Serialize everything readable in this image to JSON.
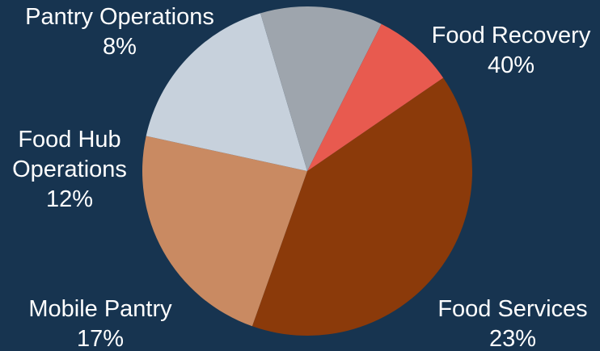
{
  "chart_data": {
    "type": "pie",
    "title": "",
    "slices": [
      {
        "label": "Food Recovery",
        "value": 40,
        "value_label": "40%",
        "color": "#8B3A0A"
      },
      {
        "label": "Food Services",
        "value": 23,
        "value_label": "23%",
        "color": "#C98A62"
      },
      {
        "label": "Mobile Pantry",
        "value": 17,
        "value_label": "17%",
        "color": "#C7D1DC"
      },
      {
        "label": "Food Hub Operations",
        "value": 12,
        "value_label": "12%",
        "color": "#9EA5AD"
      },
      {
        "label": "Pantry Operations",
        "value": 8,
        "value_label": "8%",
        "color": "#E85A4F"
      }
    ],
    "background_color": "#173450",
    "label_color": "#FFFFFF"
  }
}
